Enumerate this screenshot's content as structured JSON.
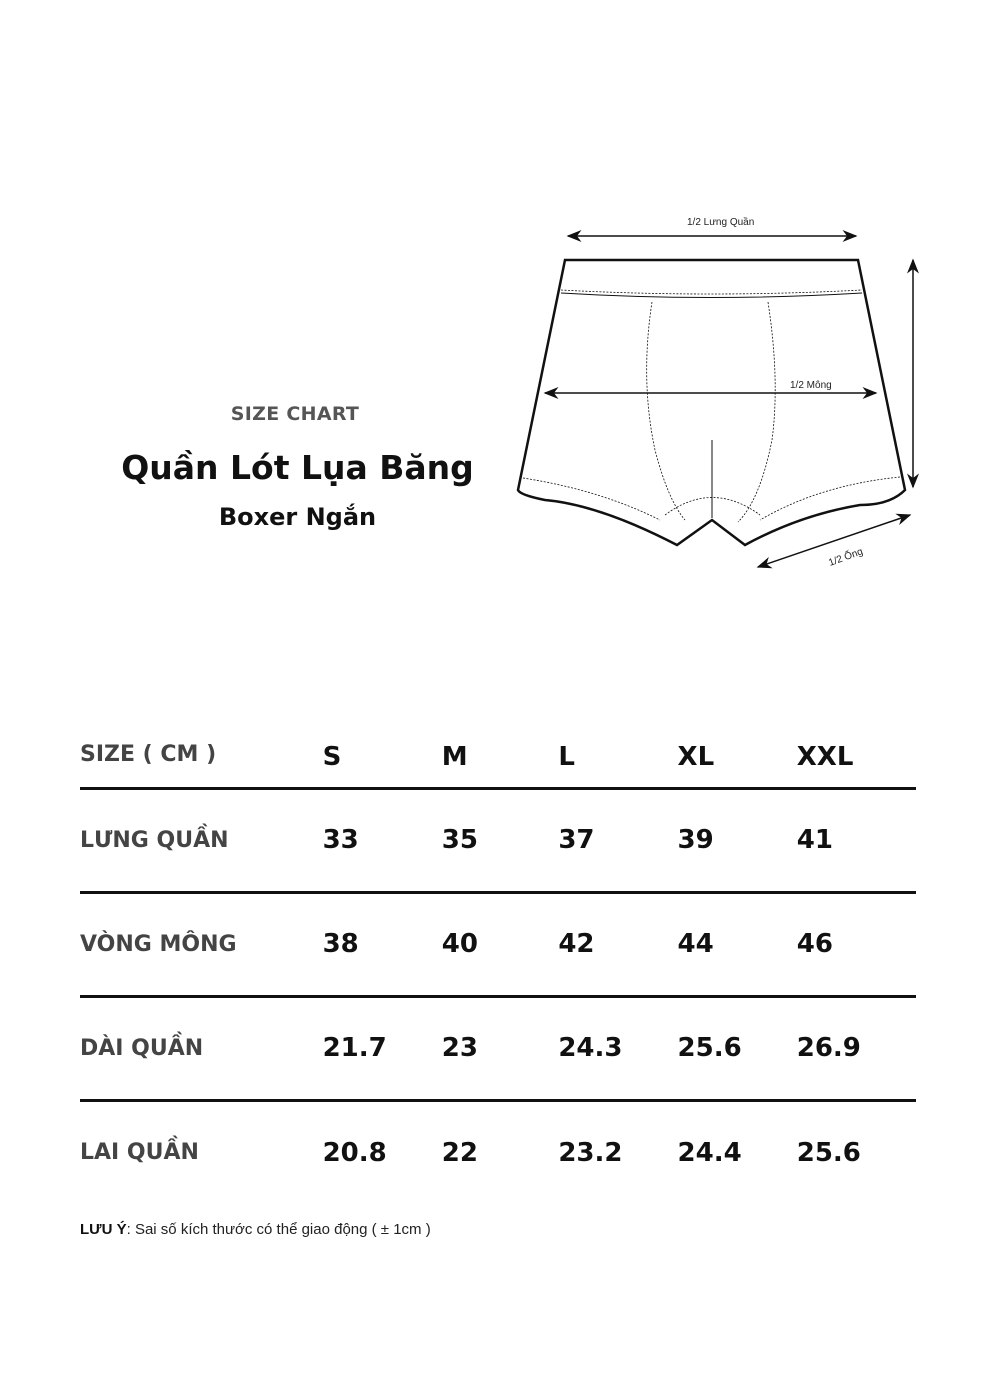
{
  "header": {
    "label": "SIZE CHART",
    "title": "Quần Lót Lụa Băng",
    "subtitle": "Boxer Ngắn"
  },
  "diagram": {
    "waist_label": "1/2 Lưng Quần",
    "hip_label": "1/2 Mông",
    "leg_label": "1/2 Ống"
  },
  "table": {
    "header": "SIZE ( CM )",
    "sizes": [
      "S",
      "M",
      "L",
      "XL",
      "XXL"
    ],
    "rows": [
      {
        "label": "LƯNG QUẦN",
        "values": [
          "33",
          "35",
          "37",
          "39",
          "41"
        ]
      },
      {
        "label": "VÒNG MÔNG",
        "values": [
          "38",
          "40",
          "42",
          "44",
          "46"
        ]
      },
      {
        "label": "DÀI QUẦN",
        "values": [
          "21.7",
          "23",
          "24.3",
          "25.6",
          "26.9"
        ]
      },
      {
        "label": "LAI QUẦN",
        "values": [
          "20.8",
          "22",
          "23.2",
          "24.4",
          "25.6"
        ]
      }
    ]
  },
  "note": {
    "label": "LƯU Ý",
    "text": ": Sai số kích thước có thể giao động ( ± 1cm )"
  }
}
